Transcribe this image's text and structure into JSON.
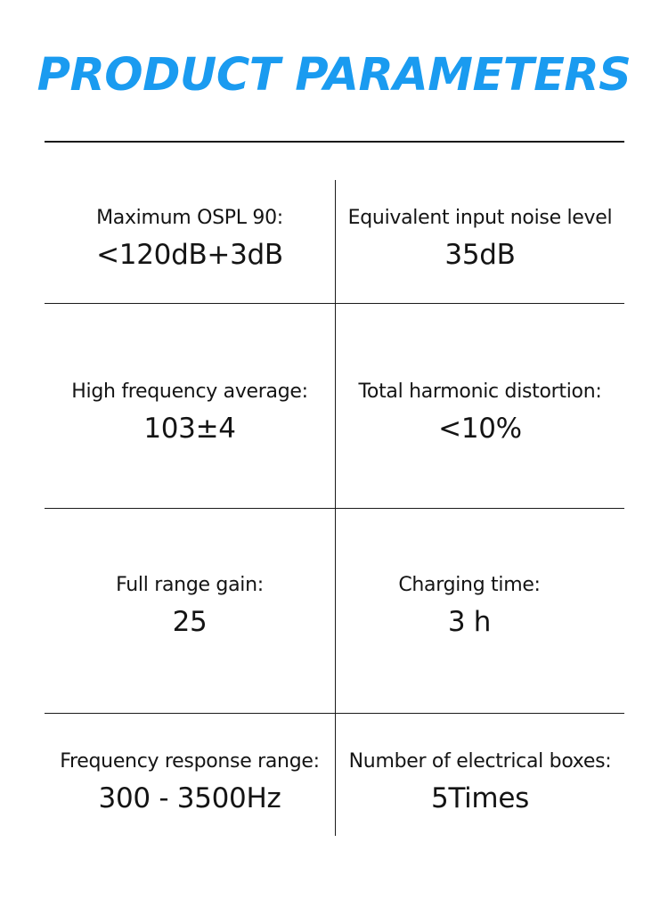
{
  "page": {
    "title": "PRODUCT PARAMETERS",
    "accent_color": "#1a9bf0"
  },
  "params": [
    {
      "label": "Maximum OSPL 90:",
      "value": "<120dB+3dB"
    },
    {
      "label": "Equivalent input noise level",
      "value": "35dB"
    },
    {
      "label": "High frequency average:",
      "value": "103±4"
    },
    {
      "label": "Total harmonic distortion:",
      "value": "<10%"
    },
    {
      "label": "Full range gain:",
      "value": "25"
    },
    {
      "label": "Charging time:",
      "value": "3 h"
    },
    {
      "label": "Frequency response range:",
      "value": "300 - 3500Hz"
    },
    {
      "label": "Number of electrical boxes:",
      "value": "5Times"
    }
  ]
}
